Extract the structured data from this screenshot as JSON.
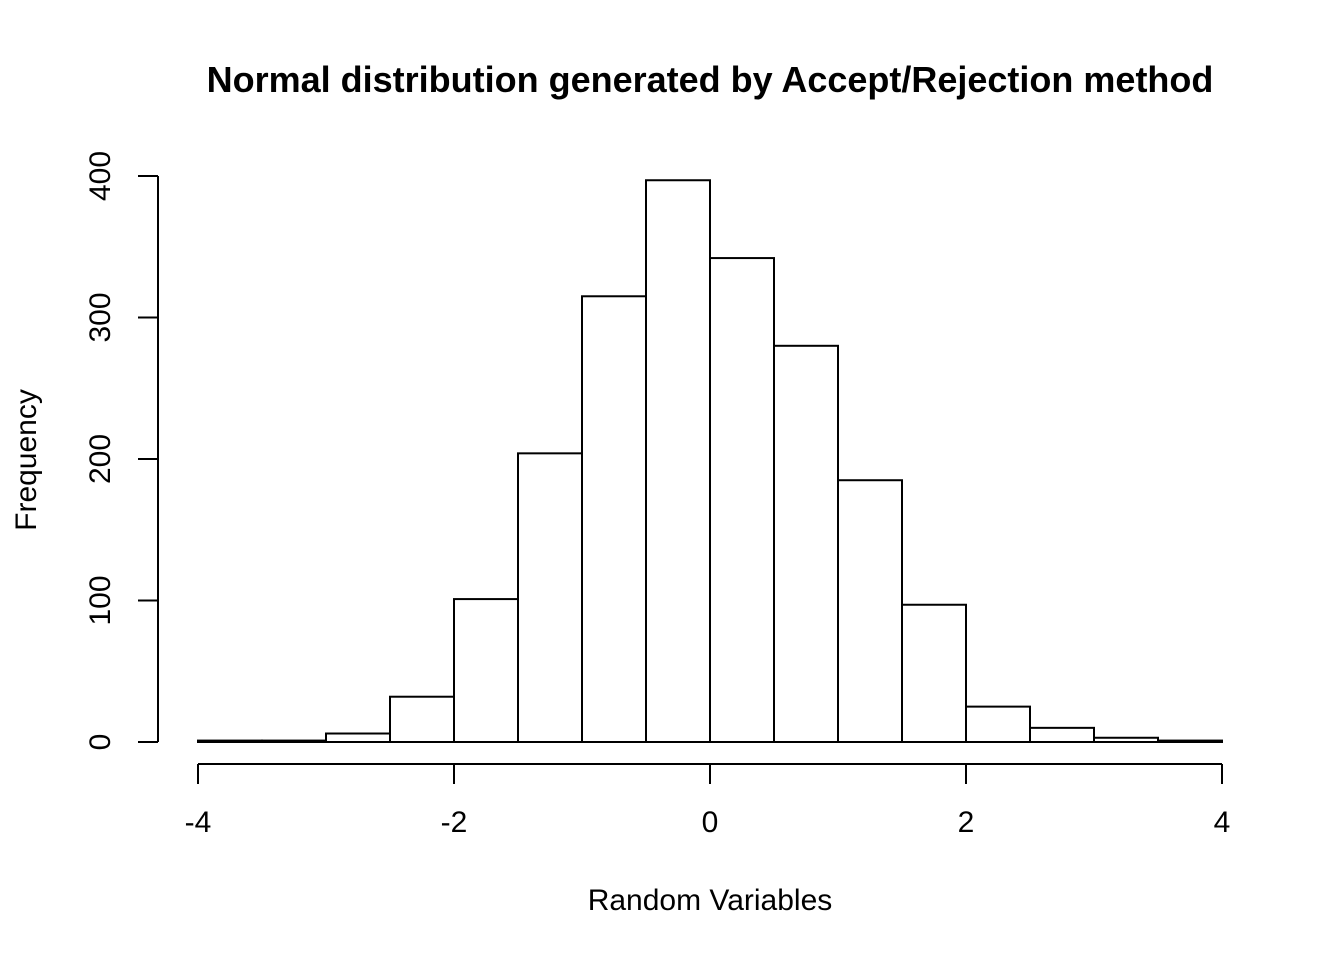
{
  "chart_data": {
    "type": "bar",
    "title": "Normal distribution generated by Accept/Rejection method",
    "xlabel": "Random Variables",
    "ylabel": "Frequency",
    "bin_edges": [
      -4,
      -3.5,
      -3,
      -2.5,
      -2,
      -1.5,
      -1,
      -0.5,
      0,
      0.5,
      1,
      1.5,
      2,
      2.5,
      3,
      3.5,
      4
    ],
    "values": [
      1,
      1,
      6,
      32,
      101,
      204,
      315,
      397,
      342,
      280,
      185,
      97,
      25,
      10,
      3,
      1
    ],
    "xlim": [
      -4,
      4
    ],
    "ylim": [
      0,
      400
    ],
    "x_ticks": [
      -4,
      -2,
      0,
      2,
      4
    ],
    "x_tick_labels": [
      "-4",
      "-2",
      "0",
      "2",
      "4"
    ],
    "y_ticks": [
      0,
      100,
      200,
      300,
      400
    ],
    "y_tick_labels": [
      "0",
      "100",
      "200",
      "300",
      "400"
    ],
    "bar_fill": "#ffffff",
    "bar_stroke": "#000000",
    "grid": false,
    "legend": "none"
  }
}
